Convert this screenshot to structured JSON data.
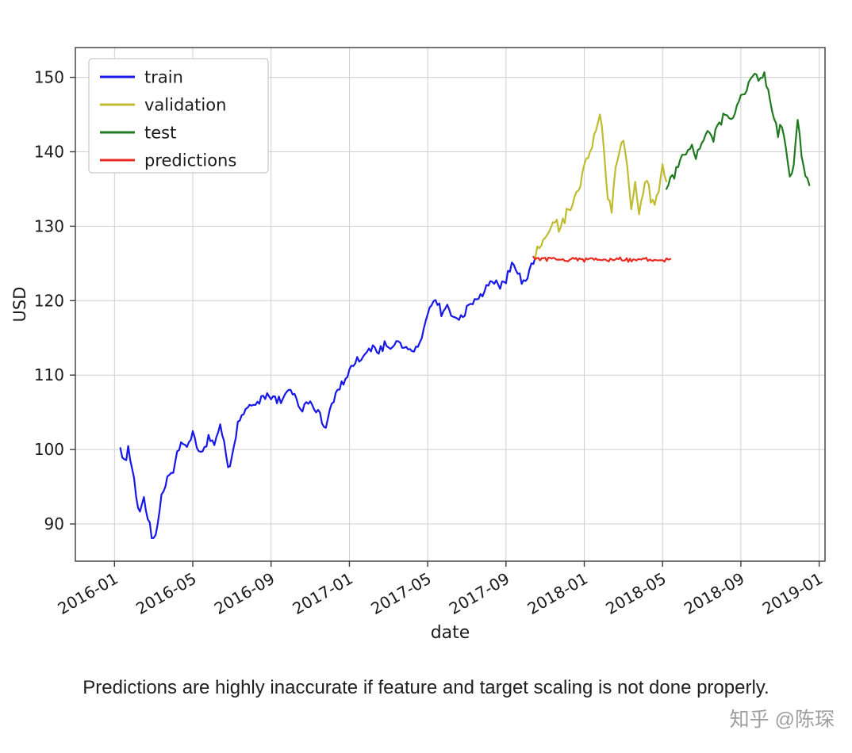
{
  "page": {
    "caption": "Predictions are highly inaccurate if feature and target scaling is not done properly.",
    "watermark": "知乎 @陈琛"
  },
  "chart_data": {
    "type": "line",
    "title": "",
    "xlabel": "date",
    "ylabel": "USD",
    "grid": true,
    "legend_position": "upper left",
    "x_unit": "months since 2016-01",
    "xlim_months": [
      -2,
      36.3
    ],
    "ylim": [
      85,
      154
    ],
    "y_ticks": [
      90,
      100,
      110,
      120,
      130,
      140,
      150
    ],
    "x_ticks": [
      {
        "month": 0,
        "label": "2016-01"
      },
      {
        "month": 4,
        "label": "2016-05"
      },
      {
        "month": 8,
        "label": "2016-09"
      },
      {
        "month": 12,
        "label": "2017-01"
      },
      {
        "month": 16,
        "label": "2017-05"
      },
      {
        "month": 20,
        "label": "2017-09"
      },
      {
        "month": 24,
        "label": "2018-01"
      },
      {
        "month": 28,
        "label": "2018-05"
      },
      {
        "month": 32,
        "label": "2018-09"
      },
      {
        "month": 36,
        "label": "2019-01"
      }
    ],
    "colors": {
      "grid": "#cfcfcf",
      "spine": "#3c3c3c",
      "legend_border": "#c9c9c9"
    },
    "series": [
      {
        "name": "train",
        "color": "#1717e8",
        "noise": 0.8,
        "points": [
          [
            0.3,
            100.2
          ],
          [
            0.5,
            98.0
          ],
          [
            0.7,
            100.5
          ],
          [
            0.9,
            97.5
          ],
          [
            1.1,
            94.0
          ],
          [
            1.3,
            91.0
          ],
          [
            1.5,
            93.5
          ],
          [
            1.7,
            90.5
          ],
          [
            1.9,
            88.5
          ],
          [
            2.1,
            88.0
          ],
          [
            2.3,
            92.0
          ],
          [
            2.5,
            94.5
          ],
          [
            2.7,
            96.5
          ],
          [
            3.0,
            97.0
          ],
          [
            3.2,
            99.5
          ],
          [
            3.4,
            101.0
          ],
          [
            3.7,
            100.0
          ],
          [
            4.0,
            102.0
          ],
          [
            4.2,
            100.5
          ],
          [
            4.5,
            99.5
          ],
          [
            4.8,
            101.5
          ],
          [
            5.1,
            100.5
          ],
          [
            5.4,
            103.0
          ],
          [
            5.6,
            101.0
          ],
          [
            5.8,
            97.5
          ],
          [
            6.0,
            99.0
          ],
          [
            6.3,
            103.5
          ],
          [
            6.6,
            105.0
          ],
          [
            7.0,
            106.0
          ],
          [
            7.4,
            106.5
          ],
          [
            7.8,
            107.5
          ],
          [
            8.1,
            107.0
          ],
          [
            8.4,
            106.5
          ],
          [
            8.7,
            107.5
          ],
          [
            9.0,
            108.0
          ],
          [
            9.3,
            106.5
          ],
          [
            9.6,
            105.5
          ],
          [
            9.9,
            106.5
          ],
          [
            10.2,
            105.5
          ],
          [
            10.5,
            104.5
          ],
          [
            10.8,
            103.0
          ],
          [
            11.0,
            105.5
          ],
          [
            11.3,
            107.5
          ],
          [
            11.6,
            108.5
          ],
          [
            12.0,
            110.5
          ],
          [
            12.3,
            111.5
          ],
          [
            12.6,
            112.0
          ],
          [
            12.9,
            113.0
          ],
          [
            13.2,
            114.0
          ],
          [
            13.5,
            113.0
          ],
          [
            13.8,
            114.0
          ],
          [
            14.1,
            113.5
          ],
          [
            14.4,
            114.5
          ],
          [
            14.7,
            114.0
          ],
          [
            15.0,
            113.5
          ],
          [
            15.3,
            113.0
          ],
          [
            15.6,
            114.5
          ],
          [
            15.9,
            117.0
          ],
          [
            16.1,
            119.5
          ],
          [
            16.4,
            120.0
          ],
          [
            16.7,
            118.5
          ],
          [
            17.0,
            119.0
          ],
          [
            17.3,
            117.5
          ],
          [
            17.6,
            118.0
          ],
          [
            17.9,
            118.5
          ],
          [
            18.2,
            119.5
          ],
          [
            18.5,
            120.5
          ],
          [
            18.8,
            121.0
          ],
          [
            19.1,
            122.0
          ],
          [
            19.4,
            122.5
          ],
          [
            19.7,
            122.0
          ],
          [
            20.0,
            123.0
          ],
          [
            20.3,
            124.5
          ],
          [
            20.6,
            124.0
          ],
          [
            20.8,
            122.5
          ],
          [
            21.1,
            123.0
          ],
          [
            21.3,
            124.5
          ],
          [
            21.5,
            125.8
          ]
        ]
      },
      {
        "name": "validation",
        "color": "#c0bc30",
        "noise": 1.1,
        "points": [
          [
            21.5,
            125.8
          ],
          [
            21.8,
            127.5
          ],
          [
            22.1,
            129.0
          ],
          [
            22.4,
            130.5
          ],
          [
            22.7,
            130.0
          ],
          [
            23.0,
            131.0
          ],
          [
            23.3,
            132.5
          ],
          [
            23.6,
            134.5
          ],
          [
            23.9,
            136.5
          ],
          [
            24.2,
            139.5
          ],
          [
            24.5,
            142.0
          ],
          [
            24.8,
            145.0
          ],
          [
            25.0,
            140.5
          ],
          [
            25.2,
            134.0
          ],
          [
            25.4,
            131.5
          ],
          [
            25.6,
            138.0
          ],
          [
            25.8,
            140.0
          ],
          [
            26.0,
            141.5
          ],
          [
            26.2,
            137.5
          ],
          [
            26.4,
            133.0
          ],
          [
            26.6,
            135.5
          ],
          [
            26.8,
            132.0
          ],
          [
            27.0,
            134.5
          ],
          [
            27.2,
            136.5
          ],
          [
            27.4,
            133.5
          ],
          [
            27.6,
            132.5
          ],
          [
            27.8,
            135.0
          ],
          [
            28.0,
            137.5
          ],
          [
            28.2,
            136.0
          ]
        ]
      },
      {
        "name": "test",
        "color": "#1f7a1f",
        "noise": 0.9,
        "points": [
          [
            28.2,
            135.0
          ],
          [
            28.5,
            136.5
          ],
          [
            28.8,
            138.0
          ],
          [
            29.1,
            139.5
          ],
          [
            29.4,
            140.5
          ],
          [
            29.7,
            139.5
          ],
          [
            30.0,
            141.0
          ],
          [
            30.3,
            143.0
          ],
          [
            30.6,
            142.0
          ],
          [
            30.9,
            144.0
          ],
          [
            31.2,
            145.0
          ],
          [
            31.5,
            144.5
          ],
          [
            31.8,
            146.5
          ],
          [
            32.1,
            147.5
          ],
          [
            32.4,
            149.0
          ],
          [
            32.7,
            150.0
          ],
          [
            33.0,
            149.5
          ],
          [
            33.2,
            150.5
          ],
          [
            33.5,
            147.5
          ],
          [
            33.7,
            144.0
          ],
          [
            33.9,
            142.5
          ],
          [
            34.1,
            144.0
          ],
          [
            34.3,
            140.5
          ],
          [
            34.5,
            136.0
          ],
          [
            34.7,
            138.5
          ],
          [
            34.9,
            144.0
          ],
          [
            35.1,
            140.0
          ],
          [
            35.3,
            136.5
          ],
          [
            35.5,
            135.5
          ]
        ]
      },
      {
        "name": "predictions",
        "color": "#e82c22",
        "noise": 0.35,
        "points": [
          [
            21.4,
            125.9
          ],
          [
            22.0,
            125.5
          ],
          [
            22.5,
            125.6
          ],
          [
            23.0,
            125.4
          ],
          [
            23.5,
            125.6
          ],
          [
            24.0,
            125.5
          ],
          [
            24.5,
            125.7
          ],
          [
            25.0,
            125.4
          ],
          [
            25.5,
            125.6
          ],
          [
            26.0,
            125.5
          ],
          [
            26.5,
            125.4
          ],
          [
            27.0,
            125.6
          ],
          [
            27.5,
            125.5
          ],
          [
            28.0,
            125.4
          ],
          [
            28.4,
            125.6
          ]
        ]
      }
    ]
  }
}
